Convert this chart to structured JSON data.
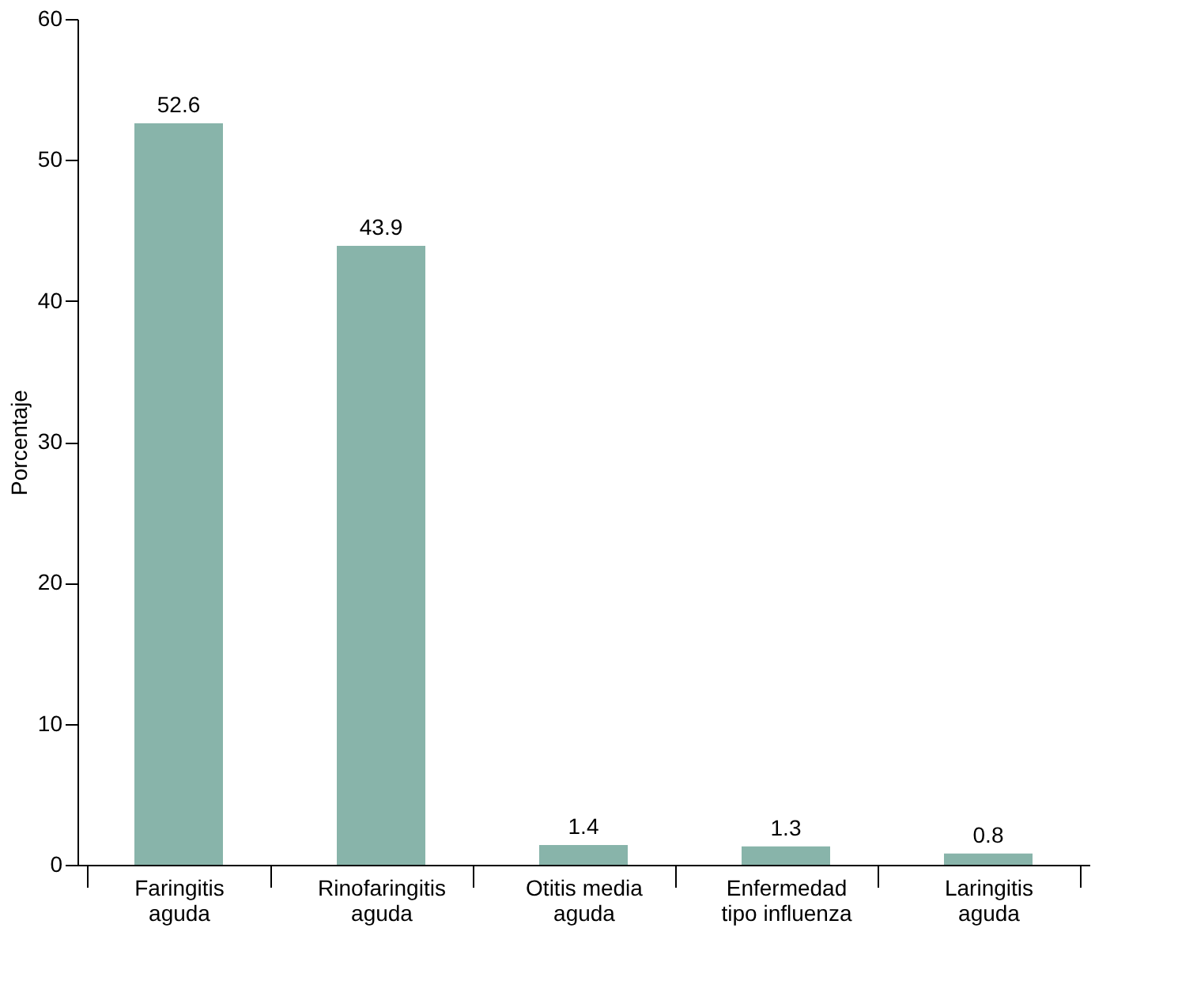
{
  "chart_data": {
    "type": "bar",
    "ylabel": "Porcentaje",
    "categories": [
      "Faringitis\naguda",
      "Rinofaringitis\naguda",
      "Otitis media\naguda",
      "Enfermedad\ntipo influenza",
      "Laringitis\naguda"
    ],
    "values": [
      52.6,
      43.9,
      1.4,
      1.3,
      0.8
    ],
    "color": "#88b4aa",
    "ylim": [
      0,
      60
    ],
    "yticks": [
      0,
      10,
      20,
      30,
      40,
      50,
      60
    ],
    "grid": false,
    "data_labels": true
  }
}
